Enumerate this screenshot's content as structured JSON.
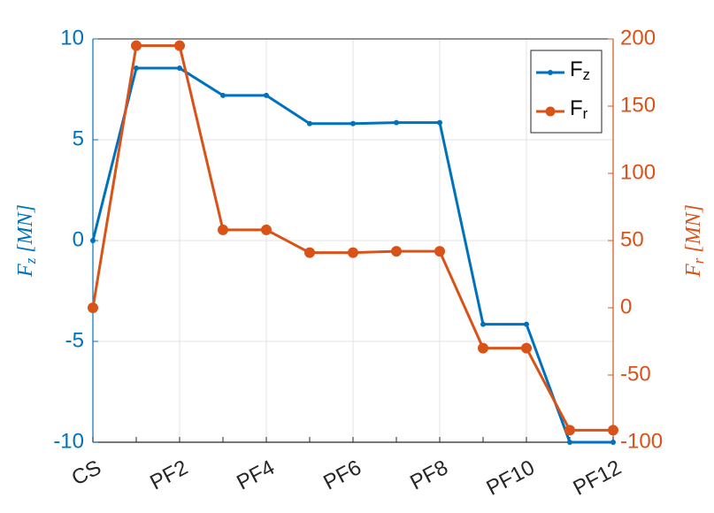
{
  "chart_data": {
    "type": "line",
    "categories": [
      "CS",
      null,
      "PF2",
      null,
      "PF4",
      null,
      "PF6",
      null,
      "PF8",
      null,
      "PF10",
      null,
      "PF12"
    ],
    "ylabel": "Fz [MN]",
    "y2label": "Fr [MN]",
    "ylim": [
      -10,
      10
    ],
    "yticks": [
      -10,
      -5,
      0,
      5,
      10
    ],
    "y2lim": [
      -100,
      200
    ],
    "y2ticks": [
      -100,
      -50,
      0,
      50,
      100,
      150,
      200
    ],
    "grid": true,
    "legend": "upper right",
    "series": [
      {
        "name": "Fz",
        "color": "#0072BD",
        "marker": "asterisk",
        "values": [
          0,
          8.55,
          8.55,
          7.2,
          7.2,
          5.8,
          5.8,
          5.85,
          5.85,
          -4.15,
          -4.15,
          -10,
          -10
        ]
      },
      {
        "name": "Fr",
        "color": "#D95319",
        "marker": "circle",
        "axis": "y2",
        "values": [
          0,
          195,
          195,
          58,
          58,
          41,
          41,
          42,
          42,
          -30,
          -30,
          -91,
          -91
        ]
      }
    ]
  }
}
